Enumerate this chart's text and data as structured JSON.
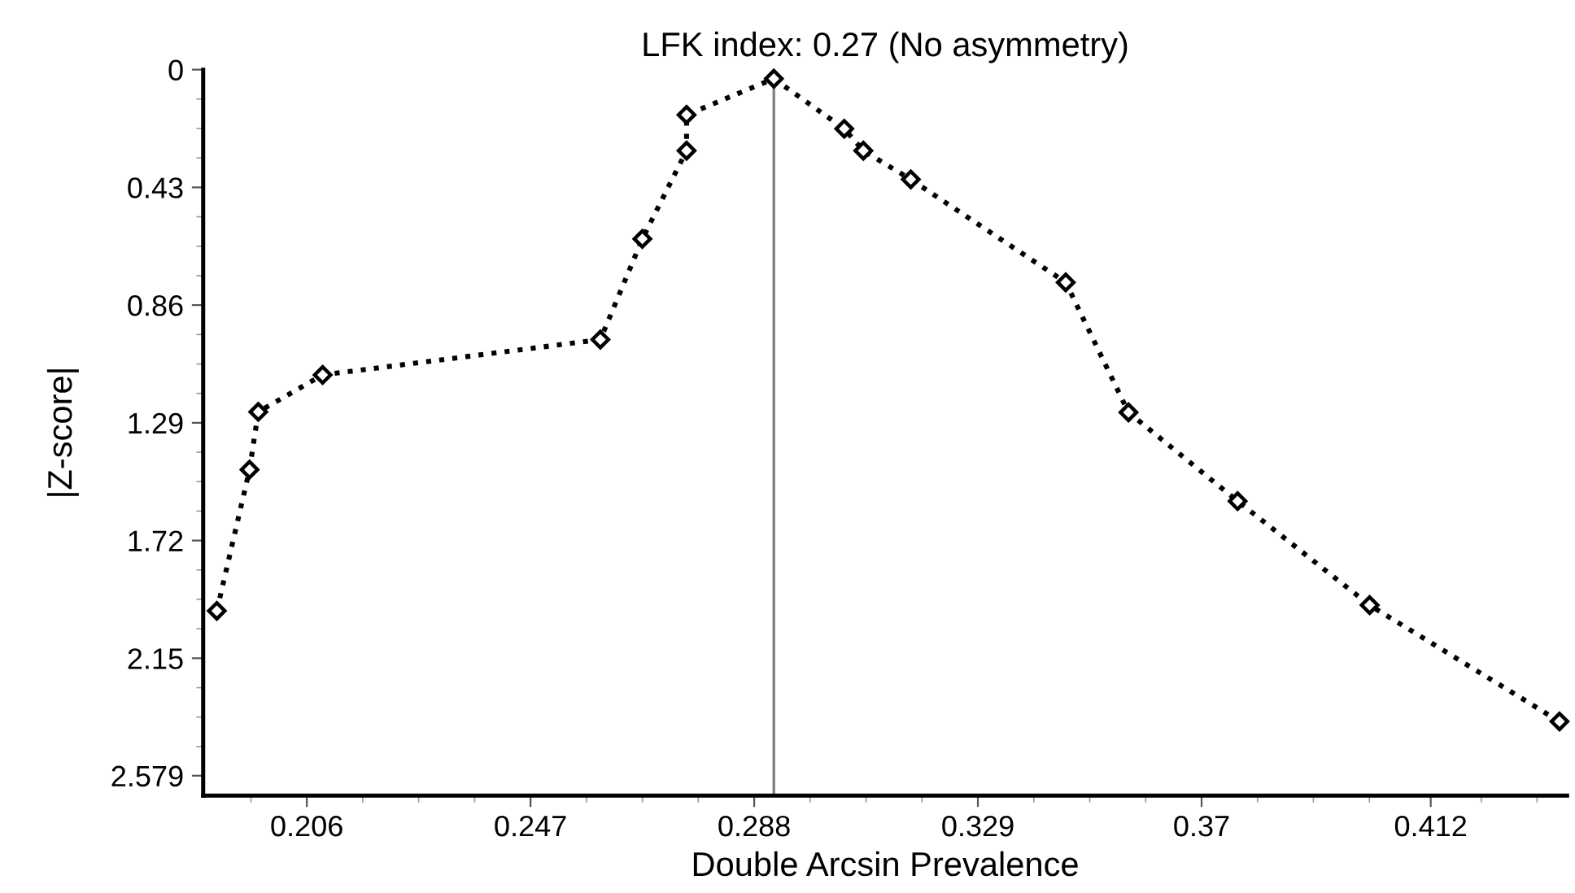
{
  "chart_data": {
    "type": "line",
    "title": "LFK index: 0.27 (No asymmetry)",
    "xlabel": "Double Arcsin Prevalence",
    "ylabel": "|Z-score|",
    "x": [
      0.1895,
      0.1955,
      0.1971,
      0.2089,
      0.2598,
      0.2675,
      0.2756,
      0.2756,
      0.2916,
      0.3045,
      0.308,
      0.3167,
      0.3451,
      0.3566,
      0.3766,
      0.4008,
      0.4356
    ],
    "series": [
      {
        "color": "#000000",
        "values": [
          1.977,
          1.461,
          1.25,
          1.115,
          0.986,
          0.618,
          0.296,
          0.165,
          0.033,
          0.216,
          0.296,
          0.401,
          0.777,
          1.252,
          1.576,
          1.956,
          2.381
        ]
      }
    ],
    "xlim": [
      0.187,
      0.437
    ],
    "ylim": [
      2.652,
      0
    ],
    "xticks": [
      0.206,
      0.247,
      0.288,
      0.329,
      0.37,
      0.412
    ],
    "yticks": [
      0,
      0.43,
      0.86,
      1.29,
      1.72,
      2.15,
      2.579
    ],
    "ref_lines": [
      {
        "axis": "x",
        "value": 0.2916,
        "color": "#808080"
      }
    ],
    "marker": "diamond",
    "line_style": "dotted",
    "grid": false
  }
}
